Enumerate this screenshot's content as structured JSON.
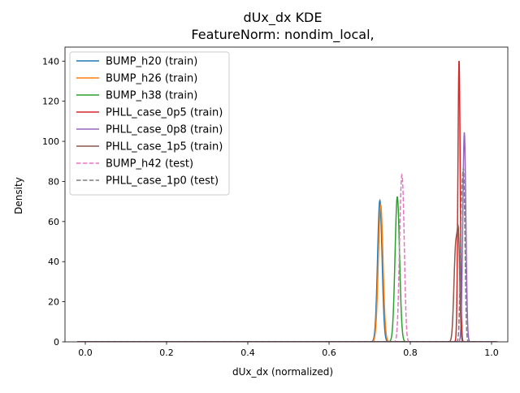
{
  "chart_data": {
    "type": "line",
    "title": "dUx_dx KDE",
    "subtitle": "FeatureNorm: nondim_local,",
    "xlabel": "dUx_dx (normalized)",
    "ylabel": "Density",
    "xlim": [
      -0.05,
      1.04
    ],
    "ylim": [
      0,
      147
    ],
    "xticks": [
      0.0,
      0.2,
      0.4,
      0.6,
      0.8,
      1.0
    ],
    "xtick_labels": [
      "0.0",
      "0.2",
      "0.4",
      "0.6",
      "0.8",
      "1.0"
    ],
    "yticks": [
      0,
      20,
      40,
      60,
      80,
      100,
      120,
      140
    ],
    "ytick_labels": [
      "0",
      "20",
      "40",
      "60",
      "80",
      "100",
      "120",
      "140"
    ],
    "grid": false,
    "legend_position": "top-left",
    "baseline_range": [
      -0.02,
      1.015
    ],
    "series": [
      {
        "name": "BUMP_h20 (train)",
        "color": "#1f77b4",
        "dash": "solid",
        "peaks": [
          {
            "x": 0.725,
            "height": 70.5,
            "sigma": 0.0055
          }
        ]
      },
      {
        "name": "BUMP_h26 (train)",
        "color": "#ff7f0e",
        "dash": "solid",
        "peaks": [
          {
            "x": 0.727,
            "height": 68.5,
            "sigma": 0.0057
          }
        ]
      },
      {
        "name": "BUMP_h38 (train)",
        "color": "#2ca02c",
        "dash": "solid",
        "peaks": [
          {
            "x": 0.768,
            "height": 72.5,
            "sigma": 0.0055
          }
        ]
      },
      {
        "name": "PHLL_case_0p5 (train)",
        "color": "#d62728",
        "dash": "solid",
        "peaks": [
          {
            "x": 0.92,
            "height": 141,
            "sigma": 0.0028
          }
        ]
      },
      {
        "name": "PHLL_case_0p8 (train)",
        "color": "#9467bd",
        "dash": "solid",
        "peaks": [
          {
            "x": 0.933,
            "height": 104.5,
            "sigma": 0.0037
          }
        ]
      },
      {
        "name": "PHLL_case_1p5 (train)",
        "color": "#8c564b",
        "dash": "solid",
        "peaks": [
          {
            "x": 0.912,
            "height": 48,
            "sigma": 0.0045
          },
          {
            "x": 0.919,
            "height": 40,
            "sigma": 0.003
          }
        ]
      },
      {
        "name": "BUMP_h42 (test)",
        "color": "#e377c2",
        "dash": "dashed",
        "peaks": [
          {
            "x": 0.777,
            "height": 63,
            "sigma": 0.0045
          },
          {
            "x": 0.783,
            "height": 43,
            "sigma": 0.004
          }
        ]
      },
      {
        "name": "PHLL_case_1p0 (test)",
        "color": "#7f7f7f",
        "dash": "dashed",
        "peaks": [
          {
            "x": 0.926,
            "height": 62,
            "sigma": 0.0032
          },
          {
            "x": 0.932,
            "height": 72,
            "sigma": 0.003
          }
        ]
      }
    ]
  }
}
